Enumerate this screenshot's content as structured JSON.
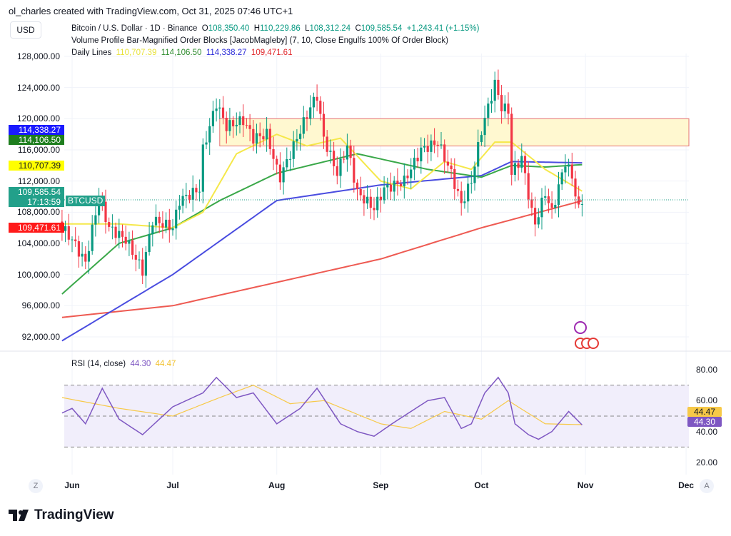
{
  "header": {
    "credit": "ol_charles created with TradingView.com, Oct 31, 2025 07:46 UTC+1",
    "currency": "USD",
    "symbol": "Bitcoin / U.S. Dollar · 1D · Binance",
    "o_label": "O",
    "o": "108,350.40",
    "h_label": "H",
    "h": "110,229.86",
    "l_label": "L",
    "l": "108,312.24",
    "c_label": "C",
    "c": "109,585.54",
    "change": "+1,243.41 (+1.15%)",
    "indicator": "Volume Profile Bar-Magnified Order Blocks [JacobMagleby] (7, 10, Close Engulfs 100% Of Order Block)",
    "daily_lines_label": "Daily Lines",
    "dl1": "110,707.39",
    "dl2": "114,106.50",
    "dl3": "114,338.27",
    "dl4": "109,471.61"
  },
  "price_axis": {
    "ticks": [
      "128,000.00",
      "124,000.00",
      "120,000.00",
      "116,000.00",
      "112,000.00",
      "108,000.00",
      "104,000.00",
      "100,000.00",
      "96,000.00",
      "92,000.00"
    ],
    "tags": {
      "blue": "114,338.27",
      "green": "114,106.50",
      "yellow": "110,707.39",
      "last": "109,585.54",
      "countdown": "17:13:59",
      "red": "109,471.61",
      "symbol": "BTCUSD"
    }
  },
  "rsi": {
    "title": "RSI (14, close)",
    "value": "44.30",
    "ma": "44.47",
    "ticks": [
      "80.00",
      "60.00",
      "40.00",
      "20.00"
    ]
  },
  "x_axis": {
    "labels": [
      "Jun",
      "Jul",
      "Aug",
      "Sep",
      "Oct",
      "Nov",
      "Dec"
    ],
    "z": "Z",
    "a": "A"
  },
  "logo": "TradingView",
  "colors": {
    "up": "#089981",
    "down": "#f23645",
    "yellow": "#f5e84a",
    "green": "#3aa849",
    "blue": "#4a4de0",
    "red": "#ee5a52",
    "rsi": "#7e57c2",
    "rsi_ma": "#f7c948"
  },
  "chart_data": {
    "type": "candlestick",
    "title": "Bitcoin / U.S. Dollar · 1D · Binance",
    "ylim": [
      90000,
      130000
    ],
    "start": "2025-05-29",
    "close_keypoints": [
      [
        "05-29",
        106000
      ],
      [
        "06-01",
        104500
      ],
      [
        "06-05",
        101500
      ],
      [
        "06-09",
        110000
      ],
      [
        "06-12",
        106000
      ],
      [
        "06-17",
        104500
      ],
      [
        "06-22",
        100500
      ],
      [
        "06-25",
        107000
      ],
      [
        "07-01",
        106000
      ],
      [
        "07-03",
        109500
      ],
      [
        "07-09",
        111000
      ],
      [
        "07-10",
        116000
      ],
      [
        "07-14",
        122000
      ],
      [
        "07-17",
        119000
      ],
      [
        "07-22",
        119800
      ],
      [
        "07-25",
        117500
      ],
      [
        "07-29",
        118000
      ],
      [
        "08-01",
        113500
      ],
      [
        "08-02",
        112500
      ],
      [
        "08-07",
        117500
      ],
      [
        "08-11",
        121500
      ],
      [
        "08-13",
        123000
      ],
      [
        "08-15",
        117500
      ],
      [
        "08-19",
        113000
      ],
      [
        "08-22",
        116500
      ],
      [
        "08-25",
        110500
      ],
      [
        "08-30",
        108500
      ],
      [
        "09-02",
        111000
      ],
      [
        "09-08",
        112000
      ],
      [
        "09-13",
        116000
      ],
      [
        "09-18",
        117000
      ],
      [
        "09-22",
        113000
      ],
      [
        "09-25",
        109000
      ],
      [
        "09-28",
        112000
      ],
      [
        "10-01",
        118500
      ],
      [
        "10-05",
        124500
      ],
      [
        "10-07",
        121500
      ],
      [
        "10-09",
        121000
      ],
      [
        "10-10",
        113000
      ],
      [
        "10-13",
        115000
      ],
      [
        "10-16",
        108000
      ],
      [
        "10-17",
        106500
      ],
      [
        "10-20",
        110500
      ],
      [
        "10-22",
        108000
      ],
      [
        "10-26",
        114500
      ],
      [
        "10-28",
        112500
      ],
      [
        "10-30",
        108300
      ],
      [
        "10-31",
        109585.54
      ]
    ],
    "lines": {
      "yellow": [
        [
          "05-29",
          106500
        ],
        [
          "06-15",
          106500
        ],
        [
          "07-01",
          106000
        ],
        [
          "07-10",
          108000
        ],
        [
          "07-20",
          115500
        ],
        [
          "08-01",
          118000
        ],
        [
          "08-10",
          116500
        ],
        [
          "08-20",
          117500
        ],
        [
          "09-01",
          112000
        ],
        [
          "09-10",
          111000
        ],
        [
          "09-20",
          114500
        ],
        [
          "09-28",
          113500
        ],
        [
          "10-05",
          117000
        ],
        [
          "10-10",
          117000
        ],
        [
          "10-20",
          113500
        ],
        [
          "10-31",
          110707.39
        ]
      ],
      "green": [
        [
          "05-29",
          97500
        ],
        [
          "06-15",
          104000
        ],
        [
          "07-01",
          106000
        ],
        [
          "07-15",
          109500
        ],
        [
          "08-01",
          113000
        ],
        [
          "08-25",
          115500
        ],
        [
          "09-15",
          113500
        ],
        [
          "10-01",
          112500
        ],
        [
          "10-10",
          114000
        ],
        [
          "10-20",
          113800
        ],
        [
          "10-31",
          114106.5
        ]
      ],
      "blue": [
        [
          "05-29",
          91500
        ],
        [
          "07-01",
          100000
        ],
        [
          "08-01",
          109500
        ],
        [
          "09-01",
          111500
        ],
        [
          "10-01",
          112700
        ],
        [
          "10-10",
          114500
        ],
        [
          "10-31",
          114338.27
        ]
      ],
      "red": [
        [
          "05-29",
          94500
        ],
        [
          "07-01",
          96000
        ],
        [
          "08-01",
          99000
        ],
        [
          "09-01",
          102000
        ],
        [
          "10-01",
          106000
        ],
        [
          "10-31",
          109471.61
        ]
      ]
    },
    "order_block": {
      "from": "07-15",
      "top": 120000,
      "bottom": 116500
    },
    "rsi": [
      [
        "05-29",
        52
      ],
      [
        "06-01",
        55
      ],
      [
        "06-05",
        45
      ],
      [
        "06-10",
        68
      ],
      [
        "06-15",
        48
      ],
      [
        "06-22",
        38
      ],
      [
        "07-01",
        56
      ],
      [
        "07-10",
        65
      ],
      [
        "07-14",
        75
      ],
      [
        "07-20",
        62
      ],
      [
        "07-25",
        65
      ],
      [
        "08-01",
        45
      ],
      [
        "08-08",
        55
      ],
      [
        "08-13",
        68
      ],
      [
        "08-20",
        45
      ],
      [
        "08-25",
        40
      ],
      [
        "08-30",
        37
      ],
      [
        "09-05",
        46
      ],
      [
        "09-15",
        60
      ],
      [
        "09-20",
        62
      ],
      [
        "09-25",
        42
      ],
      [
        "09-28",
        45
      ],
      [
        "10-02",
        65
      ],
      [
        "10-06",
        75
      ],
      [
        "10-09",
        65
      ],
      [
        "10-11",
        45
      ],
      [
        "10-15",
        38
      ],
      [
        "10-18",
        35
      ],
      [
        "10-22",
        40
      ],
      [
        "10-27",
        53
      ],
      [
        "10-31",
        44.3
      ]
    ],
    "rsi_ma": [
      [
        "05-29",
        62
      ],
      [
        "06-15",
        55
      ],
      [
        "07-01",
        50
      ],
      [
        "07-15",
        62
      ],
      [
        "07-25",
        70
      ],
      [
        "08-05",
        58
      ],
      [
        "08-15",
        60
      ],
      [
        "09-01",
        45
      ],
      [
        "09-10",
        42
      ],
      [
        "09-20",
        53
      ],
      [
        "10-01",
        48
      ],
      [
        "10-09",
        60
      ],
      [
        "10-20",
        45
      ],
      [
        "10-31",
        44.47
      ]
    ],
    "rsi_bands": [
      70,
      50,
      30
    ]
  }
}
